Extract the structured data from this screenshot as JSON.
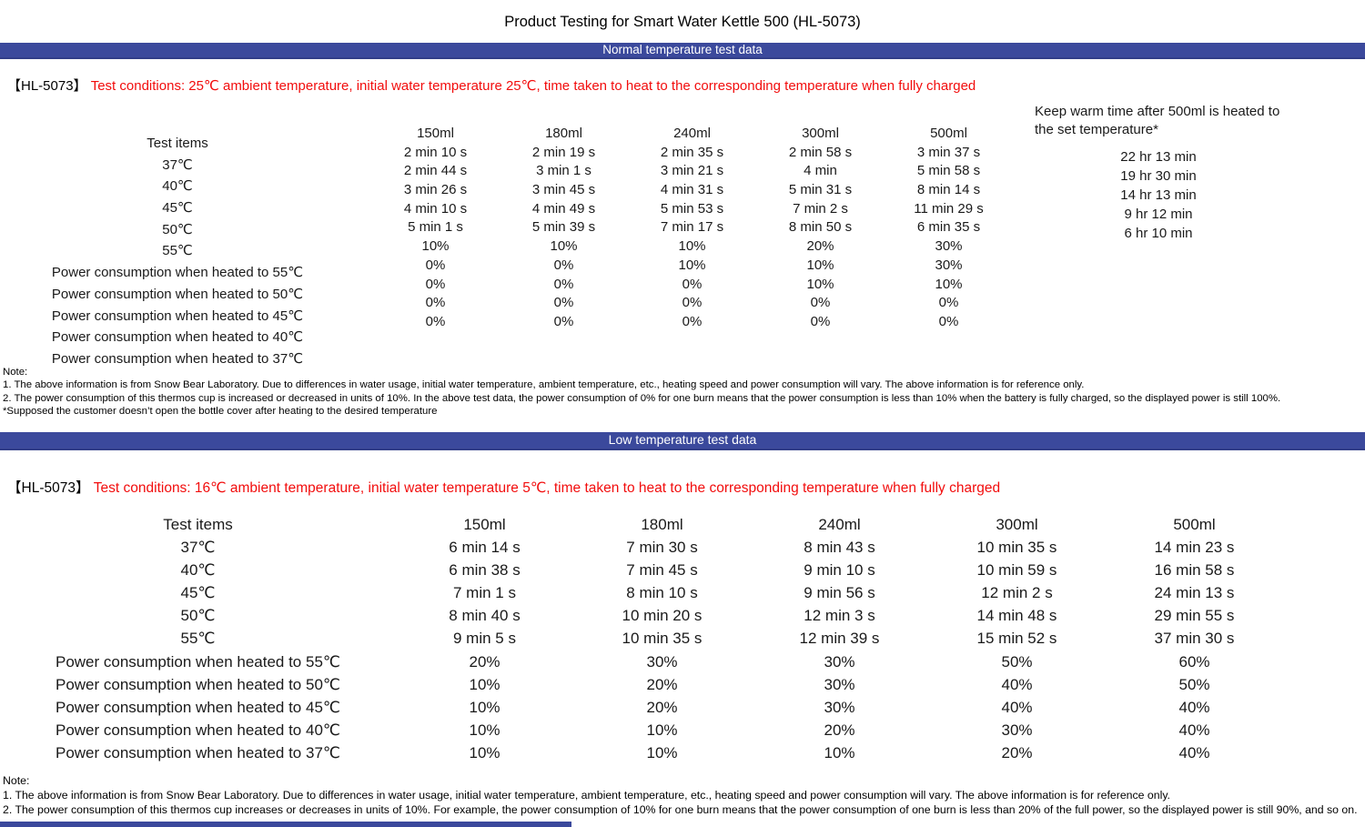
{
  "title": "Product Testing for Smart Water Kettle 500 (HL-5073)",
  "colors": {
    "banner_blue": "#3b499c",
    "condition_red": "#f20d0d"
  },
  "section1": {
    "banner": "Normal temperature test data",
    "model": "【HL-5073】",
    "conditions": "Test conditions: 25℃ ambient temperature, initial water temperature 25℃, time taken to heat to the corresponding temperature when fully charged",
    "table": {
      "row_labels": [
        "Test items",
        "37℃",
        "40℃",
        "45℃",
        "50℃",
        "55℃",
        "Power consumption when heated to 55℃",
        "Power consumption when heated to 50℃",
        "Power consumption when heated to 45℃",
        "Power consumption when heated to 40℃",
        "Power consumption when heated to 37℃"
      ],
      "columns": [
        {
          "header": "150ml",
          "values": [
            "2 min 10 s",
            "2 min 44 s",
            "3 min 26 s",
            "4 min 10 s",
            "5 min 1 s",
            "10%",
            "0%",
            "0%",
            "0%",
            "0%"
          ]
        },
        {
          "header": "180ml",
          "values": [
            "2 min 19 s",
            "3 min 1 s",
            "3 min 45 s",
            "4 min 49 s",
            "5 min 39 s",
            "10%",
            "0%",
            "0%",
            "0%",
            "0%"
          ]
        },
        {
          "header": "240ml",
          "values": [
            "2 min 35 s",
            "3 min 21 s",
            "4 min 31 s",
            "5 min 53 s",
            "7 min 17 s",
            "10%",
            "10%",
            "0%",
            "0%",
            "0%"
          ]
        },
        {
          "header": "300ml",
          "values": [
            "2 min 58 s",
            "4 min",
            "5 min 31 s",
            "7 min 2 s",
            "8 min 50 s",
            "20%",
            "10%",
            "10%",
            "0%",
            "0%"
          ]
        },
        {
          "header": "500ml",
          "values": [
            "3 min 37 s",
            "5 min 58 s",
            "8 min 14 s",
            "11 min 29 s",
            "6 min 35 s",
            "30%",
            "30%",
            "10%",
            "0%",
            "0%"
          ]
        }
      ],
      "keep_warm": {
        "header": "Keep warm time after 500ml is heated to the set temperature*",
        "values": [
          "22 hr 13 min",
          "19 hr 30 min",
          "14 hr 13 min",
          "9 hr 12 min",
          "6 hr 10 min"
        ]
      }
    },
    "notes": [
      "Note:",
      "1. The above information is from Snow Bear Laboratory. Due to differences in water usage, initial water temperature, ambient temperature, etc., heating speed and power consumption will vary. The above information is for reference only.",
      "2. The power consumption of this thermos cup is increased or decreased in units of 10%. In the above test data, the power consumption of 0% for one burn means that the power consumption is less than 10% when the battery is fully charged, so the displayed power is still 100%.",
      "*Supposed the customer doesn’t open the bottle cover after heating to the desired temperature"
    ]
  },
  "section2": {
    "banner": "Low temperature test data",
    "model": "【HL-5073】",
    "conditions": "Test conditions: 16℃ ambient temperature, initial water temperature 5℃, time taken to heat to the corresponding temperature when fully charged",
    "table": {
      "row_labels": [
        "Test items",
        "37℃",
        "40℃",
        "45℃",
        "50℃",
        "55℃",
        "Power consumption when heated to 55℃",
        "Power consumption when heated to 50℃",
        "Power consumption when heated to 45℃",
        "Power consumption when heated to 40℃",
        "Power consumption when heated to 37℃"
      ],
      "columns": [
        {
          "header": "150ml",
          "values": [
            "6 min 14 s",
            "6 min 38 s",
            "7 min 1 s",
            "8 min 40 s",
            "9 min 5 s",
            "20%",
            "10%",
            "10%",
            "10%",
            "10%"
          ]
        },
        {
          "header": "180ml",
          "values": [
            "7 min 30 s",
            "7 min 45 s",
            "8 min 10 s",
            "10 min 20 s",
            "10 min 35 s",
            "30%",
            "20%",
            "20%",
            "10%",
            "10%"
          ]
        },
        {
          "header": "240ml",
          "values": [
            "8 min 43 s",
            "9 min 10 s",
            "9 min 56 s",
            "12 min 3 s",
            "12 min 39 s",
            "30%",
            "30%",
            "30%",
            "20%",
            "10%"
          ]
        },
        {
          "header": "300ml",
          "values": [
            "10 min 35 s",
            "10 min 59 s",
            "12 min 2 s",
            "14 min 48 s",
            "15 min 52 s",
            "50%",
            "40%",
            "40%",
            "30%",
            "20%"
          ]
        },
        {
          "header": "500ml",
          "values": [
            "14 min 23 s",
            "16 min 58 s",
            "24 min 13 s",
            "29 min 55 s",
            "37 min 30 s",
            "60%",
            "50%",
            "40%",
            "40%",
            "40%"
          ]
        }
      ]
    },
    "notes": [
      "Note:",
      "1. The above information is from Snow Bear Laboratory. Due to differences in water usage, initial water temperature, ambient temperature, etc., heating speed and power consumption will vary. The above information is for reference only.",
      "2. The power consumption of this thermos cup increases or decreases in units of 10%. For example, the power consumption of 10% for one burn means that the power consumption of one burn is less than 20% of the full power, so the displayed power is still 90%, and so on."
    ]
  }
}
